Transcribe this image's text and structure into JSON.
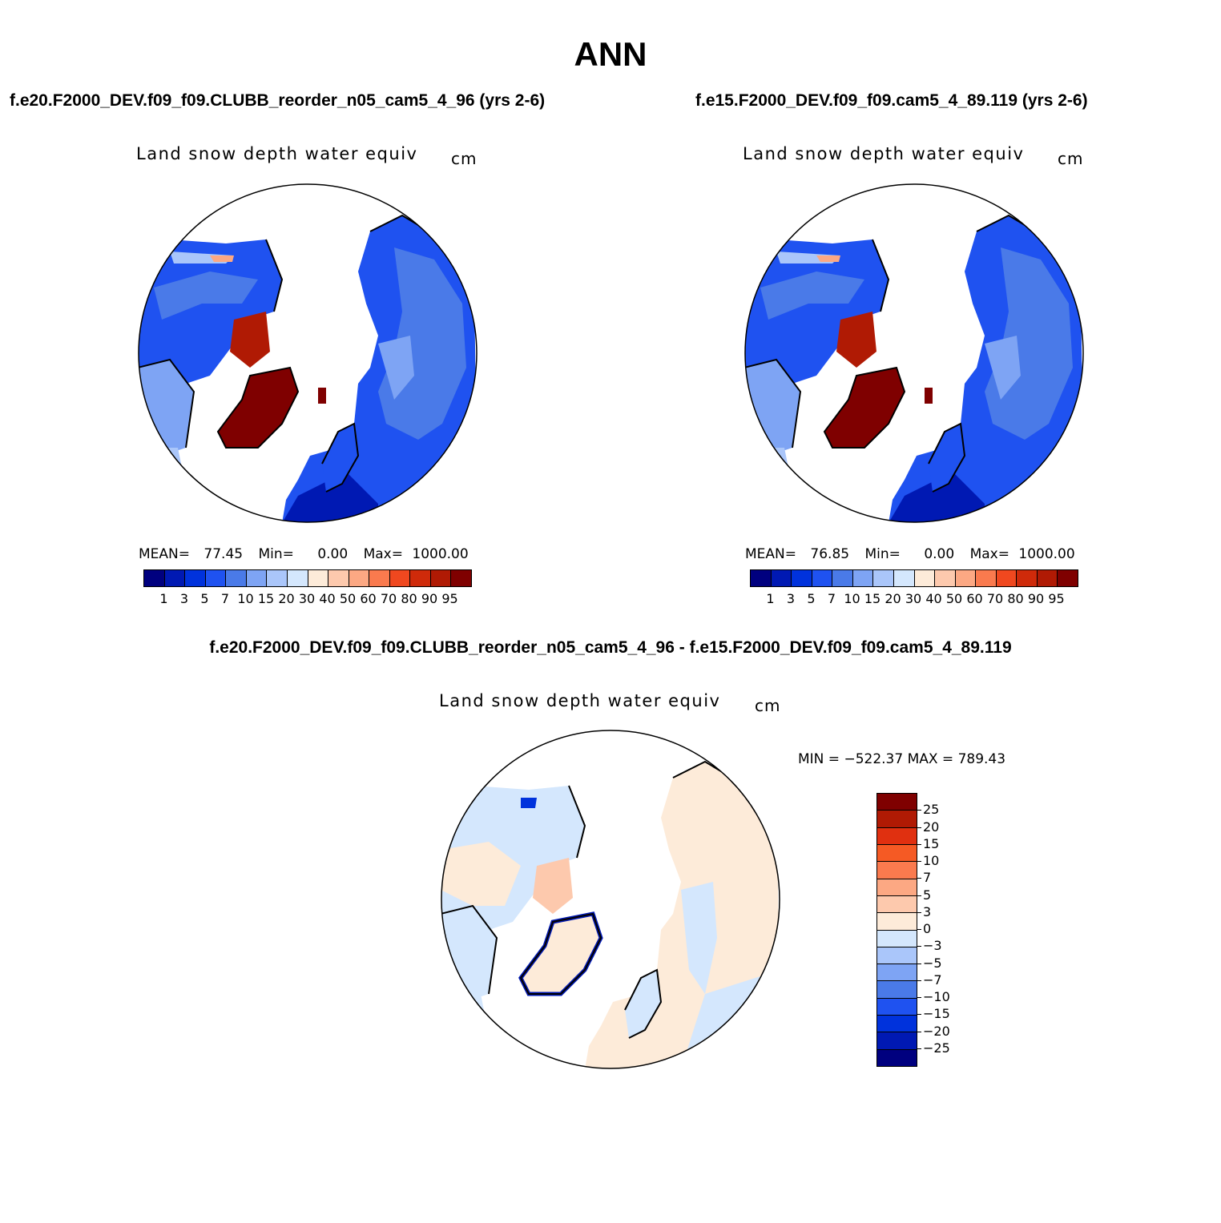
{
  "title": "ANN",
  "panel_left": {
    "case_title": "f.e20.F2000_DEV.f09_f09.CLUBB_reorder_n05_cam5_4_96 (yrs 2-6)",
    "var_title": "Land snow depth water equiv",
    "units": "cm",
    "stats": {
      "mean_label": "MEAN=",
      "mean": "77.45",
      "min_label": "Min=",
      "min": "0.00",
      "max_label": "Max=",
      "max": "1000.00"
    }
  },
  "panel_right": {
    "case_title": "f.e15.F2000_DEV.f09_f09.cam5_4_89.119 (yrs 2-6)",
    "var_title": "Land snow depth water equiv",
    "units": "cm",
    "stats": {
      "mean_label": "MEAN=",
      "mean": "76.85",
      "min_label": "Min=",
      "min": "0.00",
      "max_label": "Max=",
      "max": "1000.00"
    }
  },
  "panel_diff": {
    "case_title": "f.e20.F2000_DEV.f09_f09.CLUBB_reorder_n05_cam5_4_96 - f.e15.F2000_DEV.f09_f09.cam5_4_89.119",
    "var_title": "Land snow depth water equiv",
    "units": "cm",
    "min_max": "MIN = −522.37  MAX = 789.43"
  },
  "colorbar_abs": {
    "colors": [
      "#00007f",
      "#0019b3",
      "#0032dc",
      "#1f52f0",
      "#4a7ae8",
      "#7ea4f4",
      "#aac6fa",
      "#d4e7fd",
      "#fdebd9",
      "#fdc9ad",
      "#fca883",
      "#fa7a4e",
      "#f0481f",
      "#cf2a0a",
      "#b01a04",
      "#7f0000"
    ],
    "labels": [
      "1",
      "3",
      "5",
      "7",
      "10",
      "15",
      "20",
      "30",
      "40",
      "50",
      "60",
      "70",
      "80",
      "90",
      "95"
    ]
  },
  "colorbar_diff": {
    "colors": [
      "#7f0000",
      "#b01a04",
      "#e03010",
      "#f55a24",
      "#fa7a4e",
      "#fca883",
      "#fdc9ad",
      "#fdebd9",
      "#d4e7fd",
      "#aac6fa",
      "#7ea4f4",
      "#4a7ae8",
      "#1f52f0",
      "#0032dc",
      "#0019b3",
      "#00007f"
    ],
    "labels": [
      "25",
      "20",
      "15",
      "10",
      "7",
      "5",
      "3",
      "0",
      "−3",
      "−5",
      "−7",
      "−10",
      "−15",
      "−20",
      "−25"
    ]
  }
}
